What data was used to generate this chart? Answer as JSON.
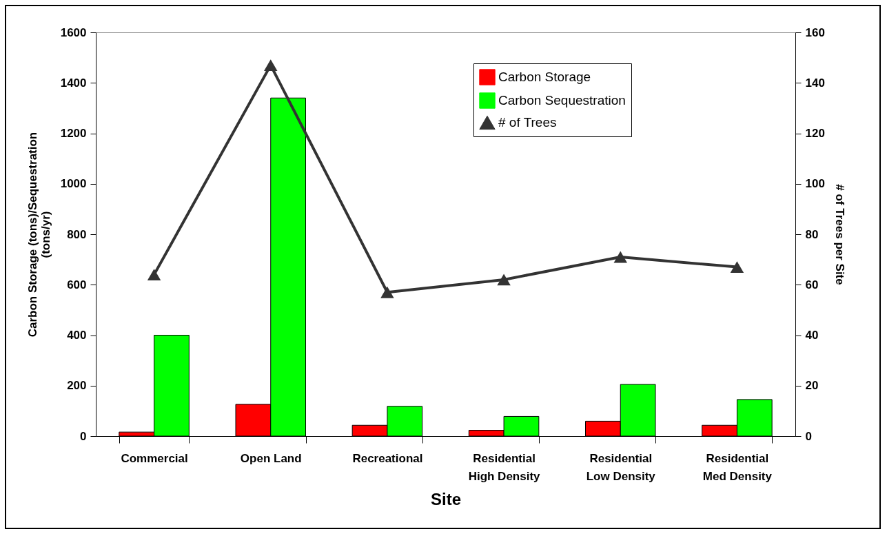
{
  "chart_data": {
    "type": "bar",
    "xlabel": "Site",
    "ylabel": "Carbon Storage (tons)/Sequestration\n(tons/yr)",
    "y2label": "# of Trees per Site",
    "categories": [
      "Commercial",
      "Open Land",
      "Recreational",
      "Residential\nHigh Density",
      "Residential\nLow Density",
      "Residential\nMed Density"
    ],
    "series": [
      {
        "name": "Carbon Storage",
        "color": "#ff0000",
        "values": [
          16,
          126,
          43,
          23,
          59,
          43
        ]
      },
      {
        "name": "Carbon Sequestration",
        "color": "#00ff00",
        "values": [
          400,
          1340,
          118,
          78,
          205,
          145
        ]
      },
      {
        "name": "# of Trees",
        "type": "line",
        "axis": "y2",
        "color": "#333333",
        "marker": "triangle",
        "values": [
          64,
          147,
          57,
          62,
          71,
          67
        ]
      }
    ],
    "ylim": [
      0,
      1600
    ],
    "yticks": [
      0,
      200,
      400,
      600,
      800,
      {
        "value": 1000,
        "label": "1000"
      },
      {
        "value": 1200,
        "label": "1200"
      },
      {
        "value": 1400,
        "label": "1400"
      },
      {
        "value": 1600,
        "label": "1600"
      }
    ],
    "y2lim": [
      0,
      160
    ],
    "y2ticks": [
      0,
      20,
      40,
      60,
      80,
      100,
      120,
      140,
      160
    ],
    "grid": false,
    "legend": "top right"
  }
}
